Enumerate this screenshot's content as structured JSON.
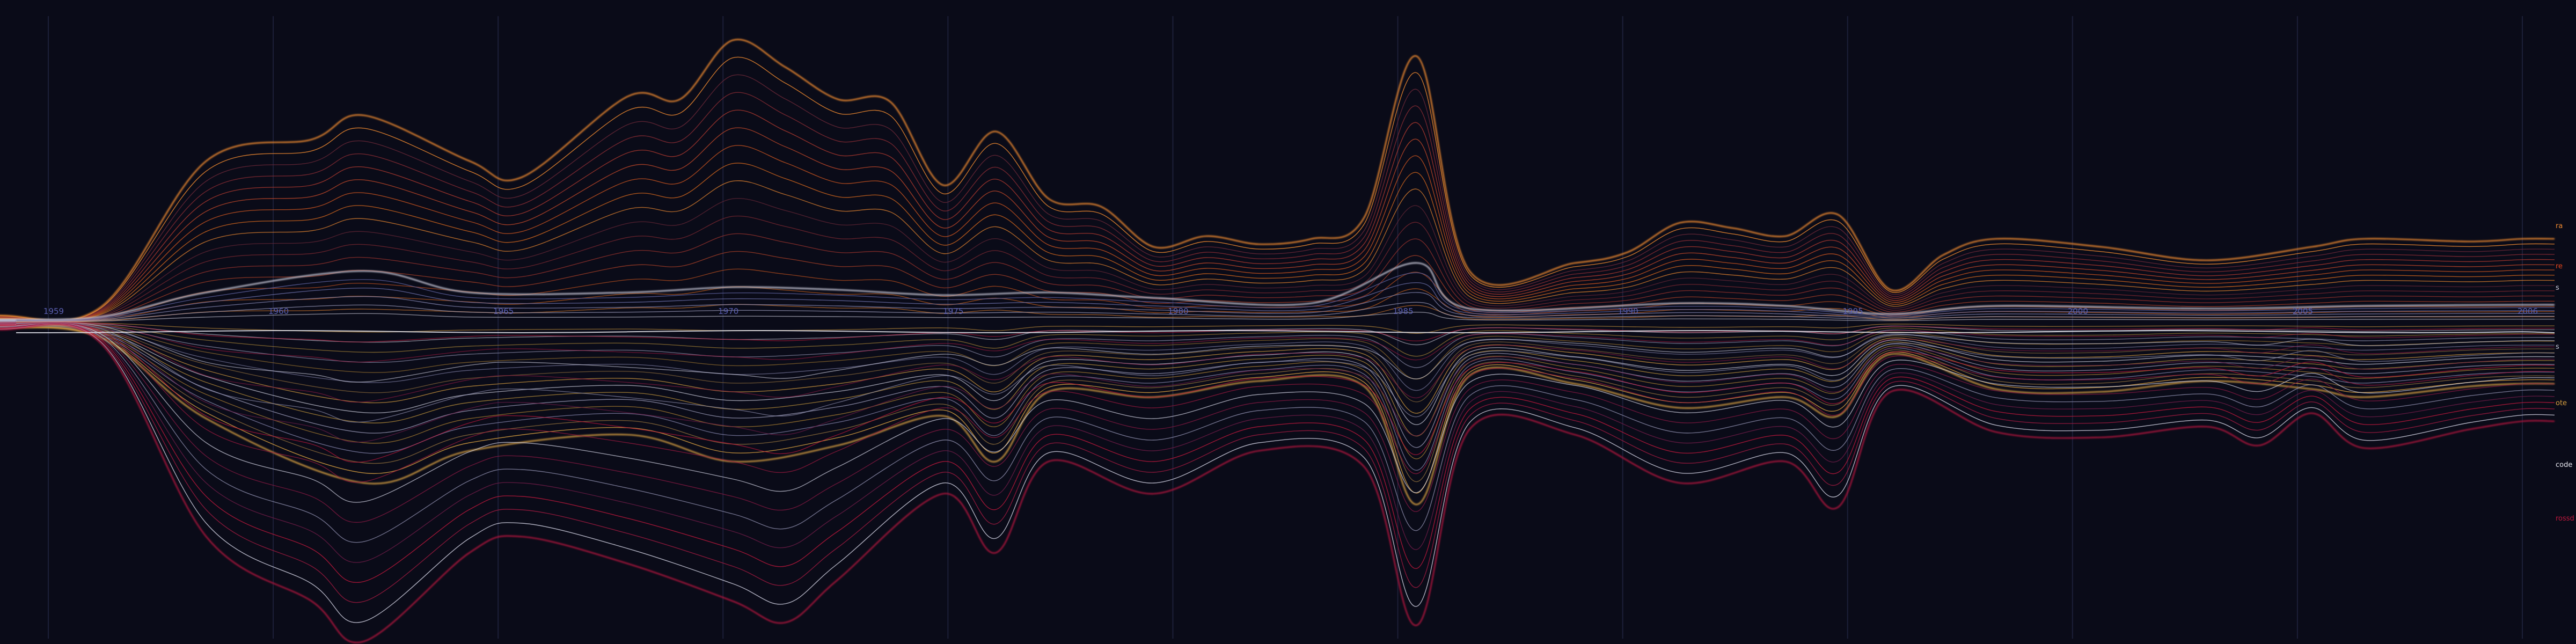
{
  "chart_data": {
    "type": "line",
    "title": "",
    "xlabel": "",
    "ylabel": "",
    "xlim": [
      1955,
      2007
    ],
    "grid": true,
    "x_ticks": [
      "1959",
      "1960",
      "1965",
      "1970",
      "1975",
      "1980",
      "1985",
      "1990",
      "1995",
      "2000",
      "2005",
      "2006"
    ],
    "series": [
      {
        "group": 0,
        "name": "",
        "color": "#f08a30",
        "values": [
          {
            "x": 1956,
            "y": 8
          },
          {
            "x": 1958,
            "y": 12
          },
          {
            "x": 1960,
            "y": 28
          },
          {
            "x": 1962,
            "y": 300
          },
          {
            "x": 1964,
            "y": 340
          },
          {
            "x": 1965,
            "y": 385
          },
          {
            "x": 1967,
            "y": 300
          },
          {
            "x": 1968,
            "y": 270
          },
          {
            "x": 1970,
            "y": 420
          },
          {
            "x": 1971,
            "y": 415
          },
          {
            "x": 1972,
            "y": 525
          },
          {
            "x": 1973,
            "y": 475
          },
          {
            "x": 1974,
            "y": 415
          },
          {
            "x": 1975,
            "y": 410
          },
          {
            "x": 1976,
            "y": 255
          },
          {
            "x": 1977,
            "y": 355
          },
          {
            "x": 1978,
            "y": 230
          },
          {
            "x": 1979,
            "y": 215
          },
          {
            "x": 1980,
            "y": 140
          },
          {
            "x": 1981,
            "y": 160
          },
          {
            "x": 1982,
            "y": 145
          },
          {
            "x": 1983,
            "y": 155
          },
          {
            "x": 1984,
            "y": 195
          },
          {
            "x": 1985,
            "y": 495
          },
          {
            "x": 1986,
            "y": 95
          },
          {
            "x": 1988,
            "y": 110
          },
          {
            "x": 1989,
            "y": 130
          },
          {
            "x": 1990,
            "y": 185
          },
          {
            "x": 1991,
            "y": 175
          },
          {
            "x": 1992,
            "y": 160
          },
          {
            "x": 1993,
            "y": 200
          },
          {
            "x": 1994,
            "y": 60
          },
          {
            "x": 1995,
            "y": 125
          },
          {
            "x": 1996,
            "y": 155
          },
          {
            "x": 1998,
            "y": 140
          },
          {
            "x": 2000,
            "y": 115
          },
          {
            "x": 2002,
            "y": 140
          },
          {
            "x": 2003,
            "y": 155
          },
          {
            "x": 2005,
            "y": 150
          },
          {
            "x": 2006,
            "y": 155
          }
        ]
      },
      {
        "group": 1,
        "name": "",
        "color": "#c8c8d8",
        "values": [
          {
            "x": 1956,
            "y": 4
          },
          {
            "x": 1958,
            "y": 5
          },
          {
            "x": 1960,
            "y": 10
          },
          {
            "x": 1962,
            "y": 55
          },
          {
            "x": 1965,
            "y": 95
          },
          {
            "x": 1967,
            "y": 55
          },
          {
            "x": 1970,
            "y": 55
          },
          {
            "x": 1972,
            "y": 65
          },
          {
            "x": 1974,
            "y": 60
          },
          {
            "x": 1976,
            "y": 50
          },
          {
            "x": 1978,
            "y": 55
          },
          {
            "x": 1980,
            "y": 45
          },
          {
            "x": 1983,
            "y": 35
          },
          {
            "x": 1985,
            "y": 110
          },
          {
            "x": 1986,
            "y": 25
          },
          {
            "x": 1990,
            "y": 35
          },
          {
            "x": 1992,
            "y": 30
          },
          {
            "x": 1994,
            "y": 15
          },
          {
            "x": 1996,
            "y": 30
          },
          {
            "x": 2000,
            "y": 25
          },
          {
            "x": 2003,
            "y": 30
          },
          {
            "x": 2006,
            "y": 32
          }
        ]
      },
      {
        "group": 2,
        "name": "",
        "color": "#d8a040",
        "values": [
          {
            "x": 1956,
            "y": -8
          },
          {
            "x": 1958,
            "y": -10
          },
          {
            "x": 1960,
            "y": -30
          },
          {
            "x": 1962,
            "y": -180
          },
          {
            "x": 1965,
            "y": -300
          },
          {
            "x": 1967,
            "y": -240
          },
          {
            "x": 1970,
            "y": -210
          },
          {
            "x": 1972,
            "y": -260
          },
          {
            "x": 1974,
            "y": -230
          },
          {
            "x": 1976,
            "y": -175
          },
          {
            "x": 1977,
            "y": -260
          },
          {
            "x": 1978,
            "y": -130
          },
          {
            "x": 1980,
            "y": -140
          },
          {
            "x": 1982,
            "y": -110
          },
          {
            "x": 1984,
            "y": -120
          },
          {
            "x": 1985,
            "y": -340
          },
          {
            "x": 1986,
            "y": -100
          },
          {
            "x": 1988,
            "y": -115
          },
          {
            "x": 1990,
            "y": -160
          },
          {
            "x": 1992,
            "y": -140
          },
          {
            "x": 1993,
            "y": -175
          },
          {
            "x": 1994,
            "y": -60
          },
          {
            "x": 1996,
            "y": -125
          },
          {
            "x": 1998,
            "y": -130
          },
          {
            "x": 2000,
            "y": -110
          },
          {
            "x": 2002,
            "y": -125
          },
          {
            "x": 2003,
            "y": -140
          },
          {
            "x": 2005,
            "y": -120
          },
          {
            "x": 2006,
            "y": -115
          }
        ]
      },
      {
        "group": 3,
        "name": "",
        "color": "#b0183c",
        "values": [
          {
            "x": 1956,
            "y": -10
          },
          {
            "x": 1958,
            "y": -14
          },
          {
            "x": 1960,
            "y": -40
          },
          {
            "x": 1962,
            "y": -400
          },
          {
            "x": 1964,
            "y": -520
          },
          {
            "x": 1965,
            "y": -595
          },
          {
            "x": 1967,
            "y": -430
          },
          {
            "x": 1968,
            "y": -400
          },
          {
            "x": 1970,
            "y": -450
          },
          {
            "x": 1972,
            "y": -520
          },
          {
            "x": 1973,
            "y": -560
          },
          {
            "x": 1974,
            "y": -480
          },
          {
            "x": 1976,
            "y": -320
          },
          {
            "x": 1977,
            "y": -430
          },
          {
            "x": 1978,
            "y": -260
          },
          {
            "x": 1980,
            "y": -320
          },
          {
            "x": 1982,
            "y": -240
          },
          {
            "x": 1984,
            "y": -270
          },
          {
            "x": 1985,
            "y": -565
          },
          {
            "x": 1986,
            "y": -200
          },
          {
            "x": 1988,
            "y": -210
          },
          {
            "x": 1990,
            "y": -300
          },
          {
            "x": 1992,
            "y": -260
          },
          {
            "x": 1993,
            "y": -345
          },
          {
            "x": 1994,
            "y": -130
          },
          {
            "x": 1996,
            "y": -205
          },
          {
            "x": 1998,
            "y": -215
          },
          {
            "x": 2000,
            "y": -195
          },
          {
            "x": 2001,
            "y": -230
          },
          {
            "x": 2002,
            "y": -170
          },
          {
            "x": 2003,
            "y": -235
          },
          {
            "x": 2005,
            "y": -200
          },
          {
            "x": 2006,
            "y": -185
          }
        ]
      }
    ],
    "edge_labels": [
      {
        "text": "ra",
        "color": "#f08a30"
      },
      {
        "text": "re",
        "color": "#e8461a"
      },
      {
        "text": "s",
        "color": "#d0d0e0"
      },
      {
        "text": "s",
        "color": "#c8c8d8"
      },
      {
        "text": "ote",
        "color": "#d8a040"
      },
      {
        "text": "code",
        "color": "#e8e8f0"
      },
      {
        "text": "rossd",
        "color": "#c0183c"
      }
    ]
  }
}
